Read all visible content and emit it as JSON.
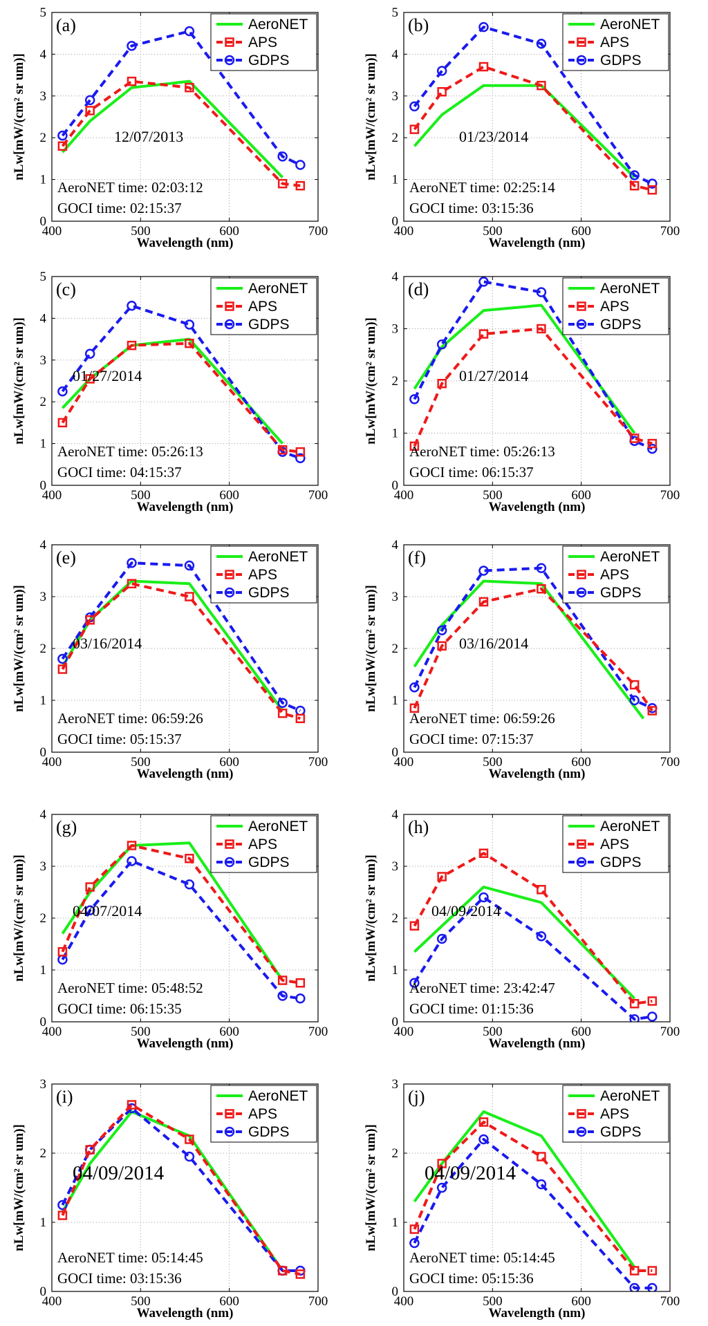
{
  "chart_data": [
    {
      "type": "line",
      "panel_label": "(a)",
      "date": "12/07/2013",
      "aeronet_time": "AeroNET time:  02:03:12",
      "goci_time": "GOCI time:  02:15:37",
      "xlabel": "Wavelength (nm)",
      "ylabel": "nLw[mW/(cm² sr um)]",
      "xlim": [
        400,
        700
      ],
      "ylim": [
        0,
        5
      ],
      "xticks": [
        "400",
        "500",
        "600",
        "700"
      ],
      "yticks": [
        "0",
        "1",
        "2",
        "3",
        "4",
        "5"
      ],
      "series": [
        {
          "name": "AeroNET",
          "x": [
            412,
            443,
            490,
            555,
            660
          ],
          "values": [
            1.65,
            2.4,
            3.2,
            3.35,
            1.05
          ]
        },
        {
          "name": "APS",
          "x": [
            412,
            443,
            490,
            555,
            660,
            680
          ],
          "values": [
            1.8,
            2.65,
            3.35,
            3.2,
            0.9,
            0.85
          ]
        },
        {
          "name": "GDPS",
          "x": [
            412,
            443,
            490,
            555,
            660,
            680
          ],
          "values": [
            2.05,
            2.9,
            4.2,
            4.55,
            1.55,
            1.35
          ]
        }
      ]
    },
    {
      "type": "line",
      "panel_label": "(b)",
      "date": "01/23/2014",
      "aeronet_time": "AeroNET time:  02:25:14",
      "goci_time": "GOCI time:  03:15:36",
      "xlabel": "Wavelength (nm)",
      "ylabel": "nLw[mW/(cm² sr um)]",
      "xlim": [
        400,
        700
      ],
      "ylim": [
        0,
        5
      ],
      "xticks": [
        "400",
        "500",
        "600",
        "700"
      ],
      "yticks": [
        "0",
        "1",
        "2",
        "3",
        "4",
        "5"
      ],
      "series": [
        {
          "name": "AeroNET",
          "x": [
            412,
            443,
            490,
            555,
            660
          ],
          "values": [
            1.8,
            2.55,
            3.25,
            3.25,
            1.05
          ]
        },
        {
          "name": "APS",
          "x": [
            412,
            443,
            490,
            555,
            660,
            680
          ],
          "values": [
            2.2,
            3.1,
            3.7,
            3.25,
            0.85,
            0.75
          ]
        },
        {
          "name": "GDPS",
          "x": [
            412,
            443,
            490,
            555,
            660,
            680
          ],
          "values": [
            2.75,
            3.6,
            4.65,
            4.25,
            1.1,
            0.9
          ]
        }
      ]
    },
    {
      "type": "line",
      "panel_label": "(c)",
      "date": "01/27/2014",
      "aeronet_time": "AeroNET time:  05:26:13",
      "goci_time": "GOCI time:  04:15:37",
      "xlabel": "Wavelength (nm)",
      "ylabel": "nLw[mW/(cm² sr um)]",
      "xlim": [
        400,
        700
      ],
      "ylim": [
        0,
        5
      ],
      "xticks": [
        "400",
        "500",
        "600",
        "700"
      ],
      "yticks": [
        "0",
        "1",
        "2",
        "3",
        "4",
        "5"
      ],
      "series": [
        {
          "name": "AeroNET",
          "x": [
            412,
            443,
            490,
            555,
            660
          ],
          "values": [
            1.85,
            2.55,
            3.35,
            3.5,
            1.0
          ]
        },
        {
          "name": "APS",
          "x": [
            412,
            443,
            490,
            555,
            660,
            680
          ],
          "values": [
            1.5,
            2.55,
            3.35,
            3.4,
            0.85,
            0.8
          ]
        },
        {
          "name": "GDPS",
          "x": [
            412,
            443,
            490,
            555,
            660,
            680
          ],
          "values": [
            2.25,
            3.15,
            4.3,
            3.85,
            0.8,
            0.65
          ]
        }
      ]
    },
    {
      "type": "line",
      "panel_label": "(d)",
      "date": "01/27/2014",
      "aeronet_time": "AeroNET time:  05:26:13",
      "goci_time": "GOCI time:  06:15:37",
      "xlabel": "Wavelength (nm)",
      "ylabel": "nLw[mW/(cm² sr um)]",
      "xlim": [
        400,
        700
      ],
      "ylim": [
        0,
        4
      ],
      "xticks": [
        "400",
        "500",
        "600",
        "700"
      ],
      "yticks": [
        "0",
        "1",
        "2",
        "3",
        "4"
      ],
      "series": [
        {
          "name": "AeroNET",
          "x": [
            412,
            443,
            490,
            555,
            660
          ],
          "values": [
            1.85,
            2.65,
            3.35,
            3.45,
            1.0
          ]
        },
        {
          "name": "APS",
          "x": [
            412,
            443,
            490,
            555,
            660,
            680
          ],
          "values": [
            0.75,
            1.95,
            2.9,
            3.0,
            0.9,
            0.8
          ]
        },
        {
          "name": "GDPS",
          "x": [
            412,
            443,
            490,
            555,
            660,
            680
          ],
          "values": [
            1.65,
            2.7,
            3.9,
            3.7,
            0.85,
            0.7
          ]
        }
      ]
    },
    {
      "type": "line",
      "panel_label": "(e)",
      "date": "03/16/2014",
      "aeronet_time": "AeroNET time: 06:59:26",
      "goci_time": "GOCI time: 05:15:37",
      "xlabel": "Wavelength (nm)",
      "ylabel": "nLw[mW/(cm² sr um)]",
      "xlim": [
        400,
        700
      ],
      "ylim": [
        0,
        4
      ],
      "xticks": [
        "400",
        "500",
        "600",
        "700"
      ],
      "yticks": [
        "0",
        "1",
        "2",
        "3",
        "4"
      ],
      "series": [
        {
          "name": "AeroNET",
          "x": [
            412,
            443,
            490,
            555,
            660
          ],
          "values": [
            1.65,
            2.55,
            3.3,
            3.25,
            0.8
          ]
        },
        {
          "name": "APS",
          "x": [
            412,
            443,
            490,
            555,
            660,
            680
          ],
          "values": [
            1.6,
            2.55,
            3.25,
            3.0,
            0.75,
            0.65
          ]
        },
        {
          "name": "GDPS",
          "x": [
            412,
            443,
            490,
            555,
            660,
            680
          ],
          "values": [
            1.8,
            2.6,
            3.65,
            3.6,
            0.95,
            0.8
          ]
        }
      ]
    },
    {
      "type": "line",
      "panel_label": "(f)",
      "date": "03/16/2014",
      "aeronet_time": "AeroNET time: 06:59:26",
      "goci_time": "GOCI time: 07:15:37",
      "xlabel": "Wavelength (nm)",
      "ylabel": "nLw[mW/(cm² sr um)]",
      "xlim": [
        400,
        700
      ],
      "ylim": [
        0,
        4
      ],
      "xticks": [
        "400",
        "500",
        "600",
        "700"
      ],
      "yticks": [
        "0",
        "1",
        "2",
        "3",
        "4"
      ],
      "series": [
        {
          "name": "AeroNET",
          "x": [
            412,
            443,
            490,
            555,
            670
          ],
          "values": [
            1.65,
            2.45,
            3.3,
            3.25,
            0.65
          ]
        },
        {
          "name": "APS",
          "x": [
            412,
            443,
            490,
            555,
            660,
            680
          ],
          "values": [
            0.85,
            2.05,
            2.9,
            3.15,
            1.3,
            0.8
          ]
        },
        {
          "name": "GDPS",
          "x": [
            412,
            443,
            490,
            555,
            660,
            680
          ],
          "values": [
            1.25,
            2.35,
            3.5,
            3.55,
            1.0,
            0.85
          ]
        }
      ]
    },
    {
      "type": "line",
      "panel_label": "(g)",
      "date": "04/07/2014",
      "aeronet_time": "AeroNET time: 05:48:52",
      "goci_time": "GOCI time: 06:15:35",
      "xlabel": "Wavelength (nm)",
      "ylabel": "nLw[mW/(cm² sr um)]",
      "xlim": [
        400,
        700
      ],
      "ylim": [
        0,
        4
      ],
      "xticks": [
        "400",
        "500",
        "600",
        "700"
      ],
      "yticks": [
        "0",
        "1",
        "2",
        "3",
        "4"
      ],
      "series": [
        {
          "name": "AeroNET",
          "x": [
            412,
            443,
            490,
            555,
            660
          ],
          "values": [
            1.7,
            2.5,
            3.4,
            3.45,
            0.8
          ]
        },
        {
          "name": "APS",
          "x": [
            412,
            443,
            490,
            555,
            660,
            680
          ],
          "values": [
            1.35,
            2.6,
            3.4,
            3.15,
            0.8,
            0.75
          ]
        },
        {
          "name": "GDPS",
          "x": [
            412,
            443,
            490,
            555,
            660,
            680
          ],
          "values": [
            1.2,
            2.15,
            3.1,
            2.65,
            0.5,
            0.45
          ]
        }
      ]
    },
    {
      "type": "line",
      "panel_label": "(h)",
      "date": "04/09/2014",
      "aeronet_time": "AeroNET time: 23:42:47",
      "goci_time": "GOCI time: 01:15:36",
      "xlabel": "Wavelength (nm)",
      "ylabel": "nLw[mW/(cm² sr um)]",
      "xlim": [
        400,
        700
      ],
      "ylim": [
        0,
        4
      ],
      "xticks": [
        "400",
        "500",
        "600",
        "700"
      ],
      "yticks": [
        "0",
        "1",
        "2",
        "3",
        "4"
      ],
      "series": [
        {
          "name": "AeroNET",
          "x": [
            412,
            443,
            490,
            555,
            660
          ],
          "values": [
            1.35,
            1.85,
            2.6,
            2.3,
            0.45
          ]
        },
        {
          "name": "APS",
          "x": [
            412,
            443,
            490,
            555,
            660,
            680
          ],
          "values": [
            1.85,
            2.8,
            3.25,
            2.55,
            0.35,
            0.4
          ]
        },
        {
          "name": "GDPS",
          "x": [
            412,
            443,
            490,
            555,
            660,
            680
          ],
          "values": [
            0.75,
            1.6,
            2.4,
            1.65,
            0.05,
            0.1
          ]
        }
      ]
    },
    {
      "type": "line",
      "panel_label": "(i)",
      "date": "04/09/2014",
      "aeronet_time": "AeroNET time: 05:14:45",
      "goci_time": "GOCI time: 03:15:36",
      "xlabel": "Wavelength (nm)",
      "ylabel": "nLw[mW/(cm² sr um)]",
      "xlim": [
        400,
        700
      ],
      "ylim": [
        0,
        3
      ],
      "xticks": [
        "400",
        "500",
        "600",
        "700"
      ],
      "yticks": [
        "0",
        "1",
        "2",
        "3"
      ],
      "series": [
        {
          "name": "AeroNET",
          "x": [
            412,
            443,
            490,
            555,
            660
          ],
          "values": [
            1.15,
            1.85,
            2.6,
            2.25,
            0.3
          ]
        },
        {
          "name": "APS",
          "x": [
            412,
            443,
            490,
            555,
            660,
            680
          ],
          "values": [
            1.1,
            2.05,
            2.7,
            2.2,
            0.3,
            0.25
          ]
        },
        {
          "name": "GDPS",
          "x": [
            412,
            443,
            490,
            555,
            660,
            680
          ],
          "values": [
            1.25,
            2.05,
            2.65,
            1.95,
            0.3,
            0.3
          ]
        }
      ]
    },
    {
      "type": "line",
      "panel_label": "(j)",
      "date": "04/09/2014",
      "aeronet_time": "AeroNET time: 05:14:45",
      "goci_time": "GOCI time: 05:15:36",
      "xlabel": "Wavelength (nm)",
      "ylabel": "nLw[mW/(cm² sr um)]",
      "xlim": [
        400,
        700
      ],
      "ylim": [
        0,
        3
      ],
      "xticks": [
        "400",
        "500",
        "600",
        "700"
      ],
      "yticks": [
        "0",
        "1",
        "2",
        "3"
      ],
      "series": [
        {
          "name": "AeroNET",
          "x": [
            412,
            443,
            490,
            555,
            660
          ],
          "values": [
            1.3,
            1.85,
            2.6,
            2.25,
            0.35
          ]
        },
        {
          "name": "APS",
          "x": [
            412,
            443,
            490,
            555,
            660,
            680
          ],
          "values": [
            0.9,
            1.85,
            2.45,
            1.95,
            0.3,
            0.3
          ]
        },
        {
          "name": "GDPS",
          "x": [
            412,
            443,
            490,
            555,
            660,
            680
          ],
          "values": [
            0.7,
            1.5,
            2.2,
            1.55,
            0.05,
            0.05
          ]
        }
      ]
    }
  ],
  "colors": {
    "AeroNET": "#1aee1a",
    "APS": "#ee1a1a",
    "GDPS": "#1a1aee"
  }
}
